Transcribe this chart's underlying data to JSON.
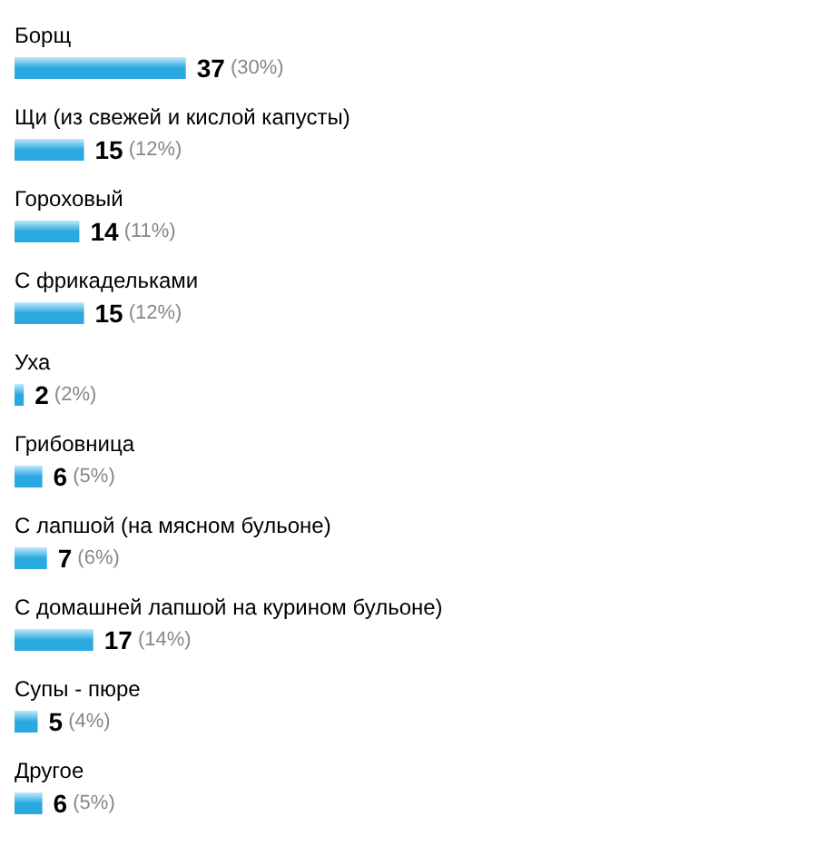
{
  "chart_data": {
    "type": "bar",
    "orientation": "horizontal",
    "categories": [
      "Борщ",
      "Щи (из свежей и кислой капусты)",
      "Гороховый",
      "С фрикадельками",
      "Уха",
      "Грибовница",
      "С лапшой (на мясном бульоне)",
      "С домашней лапшой на курином бульоне)",
      "Супы - пюре",
      "Другое"
    ],
    "values": [
      37,
      15,
      14,
      15,
      2,
      6,
      7,
      17,
      5,
      6
    ],
    "value_labels": [
      "37 (30%)",
      "15 (12%)",
      "14 (11%)",
      "15 (12%)",
      "2 (2%)",
      "6 (5%)",
      "7 (6%)",
      "17 (14%)",
      "5 (4%)",
      "6 (5%)"
    ],
    "color": "#2aa8e0"
  }
}
